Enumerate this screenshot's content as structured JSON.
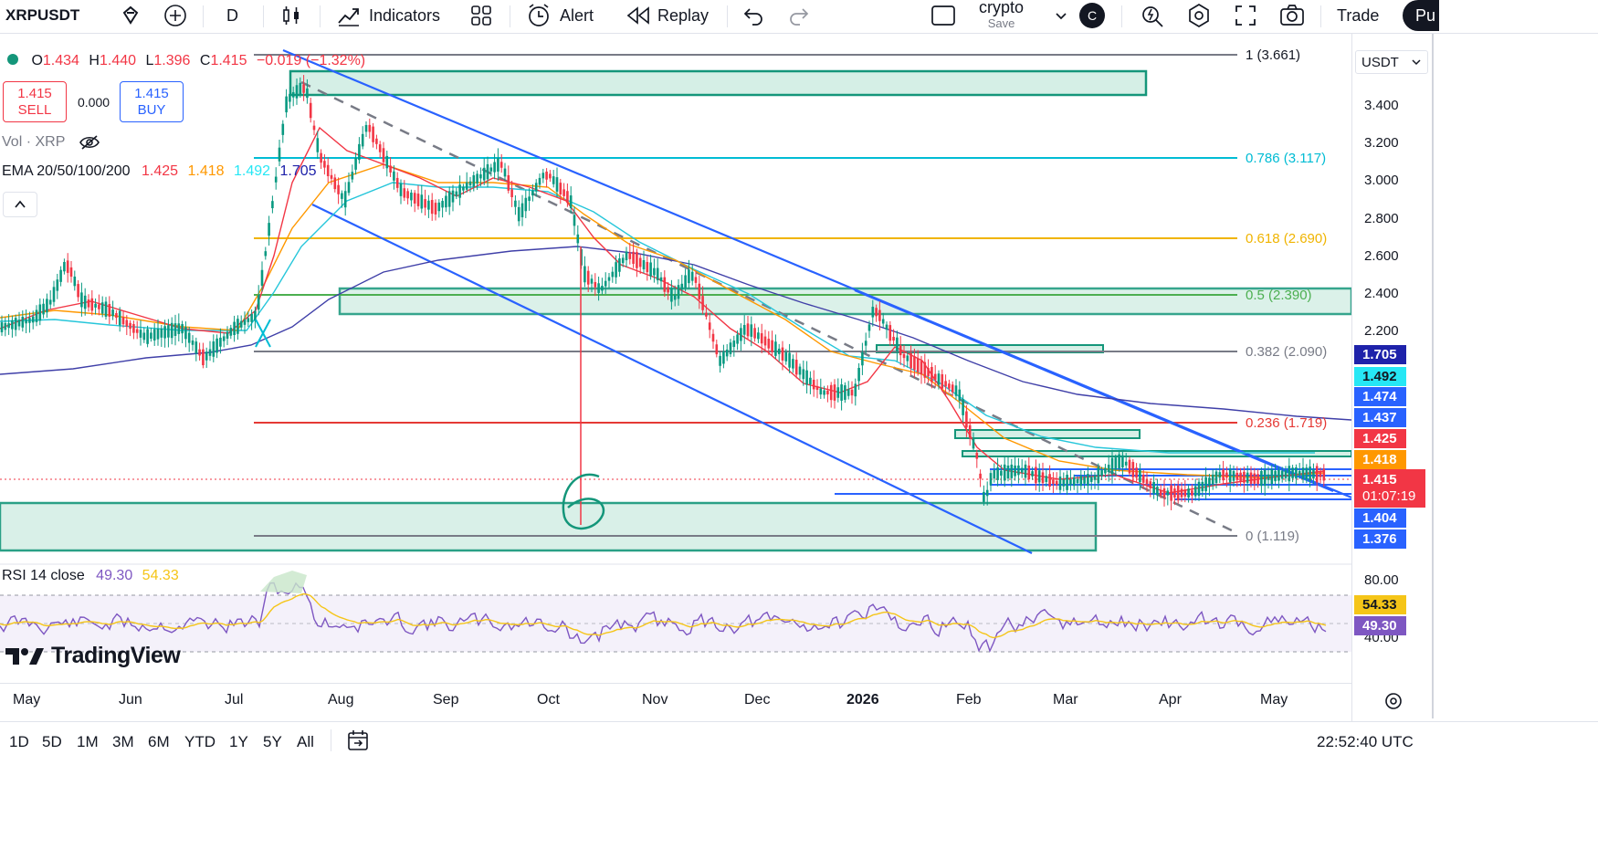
{
  "toolbar": {
    "symbol": "XRPUSDT",
    "interval": "D",
    "indicators_label": "Indicators",
    "alert_label": "Alert",
    "replay_label": "Replay",
    "layout_name": "crypto",
    "layout_status": "Save",
    "avatar_letter": "C",
    "trade_label": "Trade",
    "publish_label": "Pu"
  },
  "legend": {
    "open_label": "O",
    "open": "1.434",
    "high_label": "H",
    "high": "1.440",
    "low_label": "L",
    "low": "1.396",
    "close_label": "C",
    "close": "1.415",
    "change": "−0.019 (−1.32%)"
  },
  "trade": {
    "sell_price": "1.415",
    "sell_label": "SELL",
    "spread": "0.000",
    "buy_price": "1.415",
    "buy_label": "BUY"
  },
  "indicators": {
    "vol_label": "Vol · XRP",
    "ema_label": "EMA 20/50/100/200",
    "ema_values": [
      "1.425",
      "1.418",
      "1.492",
      "1.705"
    ],
    "rsi_label": "RSI 14 close",
    "rsi_values": [
      "49.30",
      "54.33"
    ]
  },
  "currency": "USDT",
  "price_axis": [
    "3.400",
    "3.200",
    "3.000",
    "2.800",
    "2.600",
    "2.400",
    "2.200"
  ],
  "fib_levels": [
    {
      "label": "1 (3.661)",
      "color": "#787b86"
    },
    {
      "label": "0.786 (3.117)",
      "color": "#00bcd4"
    },
    {
      "label": "0.618 (2.690)",
      "color": "#f0b400"
    },
    {
      "label": "0.5 (2.390)",
      "color": "#4caf50"
    },
    {
      "label": "0.382 (2.090)",
      "color": "#787b86"
    },
    {
      "label": "0.236 (1.719)",
      "color": "#e53935"
    },
    {
      "label": "0 (1.119)",
      "color": "#787b86"
    }
  ],
  "price_badges": [
    {
      "value": "1.705",
      "color": "#1e22aa"
    },
    {
      "value": "1.492",
      "color": "#26e7f5"
    },
    {
      "value": "1.474",
      "color": "#2962ff"
    },
    {
      "value": "1.437",
      "color": "#2962ff"
    },
    {
      "value": "1.425",
      "color": "#f23645"
    },
    {
      "value": "1.418",
      "color": "#ff9800"
    },
    {
      "value": "1.404",
      "color": "#2962ff"
    },
    {
      "value": "1.376",
      "color": "#2962ff"
    }
  ],
  "last_price": {
    "value": "1.415",
    "countdown": "01:07:19",
    "color": "#f23645"
  },
  "rsi_axis": [
    "80.00",
    "40.00"
  ],
  "rsi_badges": [
    {
      "value": "54.33",
      "color": "#f5c518"
    },
    {
      "value": "49.30",
      "color": "#7e57c2"
    }
  ],
  "time_axis": [
    "May",
    "Jun",
    "Jul",
    "Aug",
    "Sep",
    "Oct",
    "Nov",
    "Dec",
    "2026",
    "Feb",
    "Mar",
    "Apr",
    "May"
  ],
  "annotation_digit": "6",
  "brand": "TradingView",
  "ranges": [
    "1D",
    "5D",
    "1M",
    "3M",
    "6M",
    "YTD",
    "1Y",
    "5Y",
    "All"
  ],
  "clock": "22:52:40 UTC"
}
